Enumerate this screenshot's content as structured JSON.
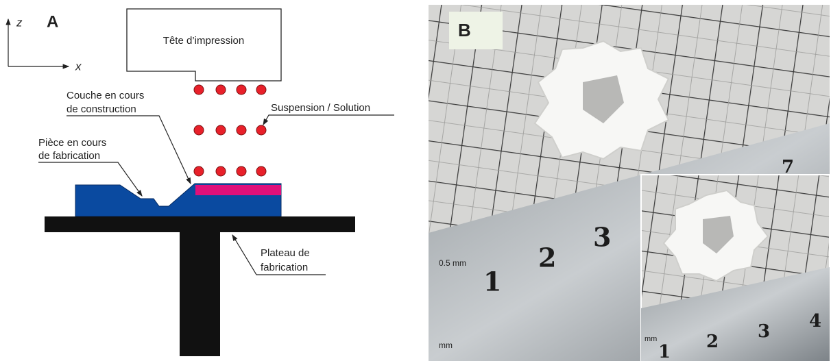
{
  "panel_a": {
    "label": "A",
    "axis_z": "z",
    "axis_x": "x",
    "print_head": "Tête d’impression",
    "layer": [
      "Couche en cours",
      "de construction"
    ],
    "suspension": "Suspension / Solution",
    "part": [
      "Pièce en cours",
      "de fabrication"
    ],
    "platform": [
      "Plateau de",
      "fabrication"
    ]
  },
  "panel_b": {
    "label": "B",
    "ruler_unit": "0.5 mm",
    "ruler_mm": "mm",
    "ruler_numbers": [
      "1",
      "2",
      "3"
    ],
    "background_number": "7",
    "inset_mm": "mm",
    "inset_numbers": [
      "1",
      "2",
      "3",
      "4"
    ]
  }
}
